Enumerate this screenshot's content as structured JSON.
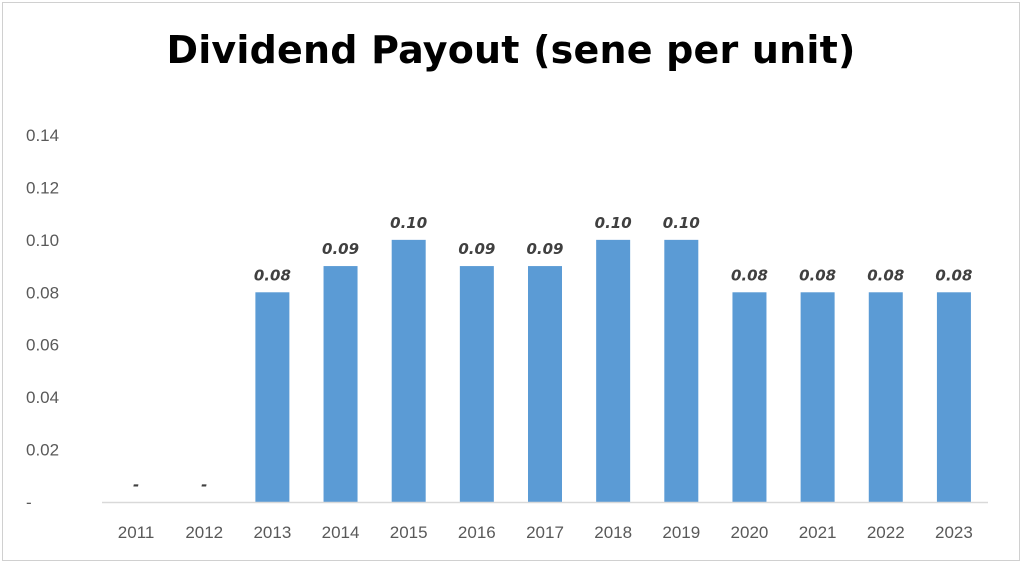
{
  "chart_data": {
    "type": "bar",
    "title": "Dividend Payout (sene per unit)",
    "xlabel": "",
    "ylabel": "",
    "categories": [
      "2011",
      "2012",
      "2013",
      "2014",
      "2015",
      "2016",
      "2017",
      "2018",
      "2019",
      "2020",
      "2021",
      "2022",
      "2023"
    ],
    "values": [
      0,
      0,
      0.08,
      0.09,
      0.1,
      0.09,
      0.09,
      0.1,
      0.1,
      0.08,
      0.08,
      0.08,
      0.08
    ],
    "data_labels": [
      "-",
      "-",
      "0.08",
      "0.09",
      "0.10",
      "0.09",
      "0.09",
      "0.10",
      "0.10",
      "0.08",
      "0.08",
      "0.08",
      "0.08"
    ],
    "ylim": [
      0,
      0.14
    ],
    "yticks": [
      0,
      0.02,
      0.04,
      0.06,
      0.08,
      0.1,
      0.12,
      0.14
    ],
    "ytick_labels": [
      "-",
      "0.02",
      "0.04",
      "0.06",
      "0.08",
      "0.10",
      "0.12",
      "0.14"
    ],
    "grid": false,
    "legend": "none",
    "bar_color": "#5b9bd5"
  }
}
